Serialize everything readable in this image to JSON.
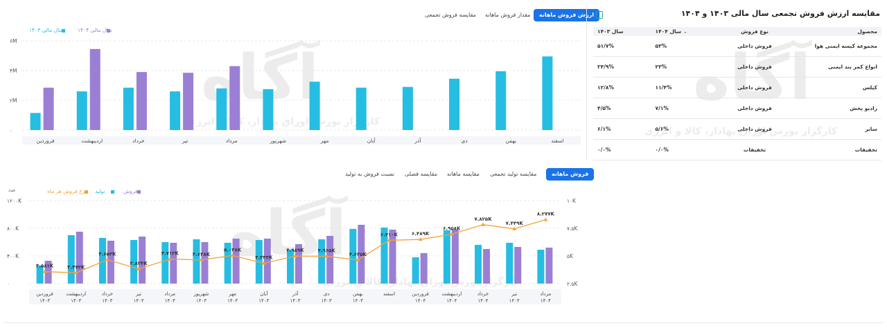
{
  "top_chart": {
    "tabs": [
      "ارزش فروش ماهانه",
      "مقدار فروش ماهانه",
      "مقایسه فروش تجمعی"
    ],
    "active_tab": 0,
    "legend": [
      {
        "name": "سال مالی ۱۴۰۴",
        "color": "#9b7fd4"
      },
      {
        "name": "سال مالی ۱۴۰۳",
        "color": "#26bde2"
      }
    ],
    "colors": {
      "y1404": "#9b7fd4",
      "y1403": "#26bde2"
    }
  },
  "bottom_chart": {
    "tabs": [
      "فروش ماهانه",
      "مقایسه تولید تجمعی",
      "مقایسه ماهانه",
      "مقایسه فصلی",
      "نسبت فروش به تولید"
    ],
    "active_tab": 0,
    "left_axis_title": "عدد",
    "legend": [
      {
        "name": "فروش",
        "color": "#9b7fd4"
      },
      {
        "name": "تولید",
        "color": "#26bde2"
      },
      {
        "name": "نرخ فروش هر ماه",
        "color": "#f4a23a"
      }
    ],
    "colors": {
      "sales": "#9b7fd4",
      "production": "#26bde2",
      "rate": "#f4a23a"
    }
  },
  "table_panel": {
    "title": "مقایسه ارزش فروش تجمعی سال مالی ۱۴۰۳ و ۱۴۰۴",
    "columns": [
      "محصول",
      "نوع فروش",
      "سال ۱۴۰۴",
      "سال ۱۴۰۳"
    ],
    "rows": [
      {
        "product": "مجموعه کیسه ایمنی هوا",
        "type": "فروش داخلی",
        "y1404": "۵۳%",
        "y1403": "۵۱/۷%"
      },
      {
        "product": "انواع کمر بند ایمنی",
        "type": "فروش داخلی",
        "y1404": "۲۳%",
        "y1403": "۲۴/۹%"
      },
      {
        "product": "کیلس",
        "type": "فروش داخلی",
        "y1404": "۱۱/۴%",
        "y1403": "۱۲/۸%"
      },
      {
        "product": "رادیو پخش",
        "type": "فروش داخلی",
        "y1404": "۷/۱%",
        "y1403": "۴/۵%"
      },
      {
        "product": "سایر",
        "type": "فروش داخلی",
        "y1404": "۵/۶%",
        "y1403": "۶/۱%"
      },
      {
        "product": "تخفیفات",
        "type": "تخفیفات",
        "y1404": "۰/۰%",
        "y1403": "۰/۰%"
      }
    ]
  },
  "watermark": {
    "logo": "آگاه",
    "tagline": "کارگزار بورس اوراق بهادار، کالا و انرژی"
  },
  "chart_data": [
    {
      "type": "bar",
      "categories": [
        "فروردین",
        "اردیبهشت",
        "خرداد",
        "تیر",
        "مرداد",
        "شهریور",
        "مهر",
        "آبان",
        "آذر",
        "دی",
        "بهمن",
        "اسفند"
      ],
      "series": [
        {
          "name": "سال مالی ۱۴۰۳",
          "values": [
            1.15,
            2.6,
            2.85,
            2.6,
            2.8,
            2.75,
            3.25,
            2.85,
            2.9,
            3.45,
            3.95,
            4.95
          ]
        },
        {
          "name": "سال مالی ۱۴۰۴",
          "values": [
            2.85,
            5.45,
            3.9,
            3.85,
            4.3,
            null,
            null,
            null,
            null,
            null,
            null,
            null
          ]
        }
      ],
      "y_ticks": [
        "۰",
        "۲M",
        "۴M",
        "۶M"
      ],
      "ylim": [
        0,
        6
      ],
      "x_reversed": false
    },
    {
      "type": "bar",
      "categories": [
        "فروردین ۱۴۰۳",
        "اردیبهشت ۱۴۰۳",
        "خرداد ۱۴۰۳",
        "تیر ۱۴۰۳",
        "مرداد ۱۴۰۳",
        "شهریور ۱۴۰۳",
        "مهر ۱۴۰۳",
        "آبان ۱۴۰۳",
        "آذر ۱۴۰۳",
        "دی ۱۴۰۳",
        "بهمن ۱۴۰۳",
        "اسفند",
        "فروردین ۱۴۰۴",
        "اردیبهشت ۱۴۰۴",
        "خرداد ۱۴۰۴",
        "تیر ۱۴۰۴",
        "مرداد ۱۴۰۴"
      ],
      "series": [
        {
          "name": "تولید",
          "axis": "left",
          "values": [
            260,
            700,
            660,
            630,
            600,
            640,
            590,
            630,
            490,
            640,
            790,
            810,
            380,
            770,
            560,
            590,
            490
          ]
        },
        {
          "name": "فروش",
          "axis": "left",
          "values": [
            330,
            750,
            620,
            680,
            590,
            600,
            650,
            650,
            570,
            690,
            850,
            780,
            440,
            780,
            500,
            530,
            520
          ]
        },
        {
          "name": "نرخ فروش هر ماه",
          "type": "line",
          "axis": "right",
          "values": [
            3.581,
            3.472,
            4.652,
            3.824,
            4.712,
            4.638,
            5.038,
            4.333,
            4.989,
            4.965,
            4.635,
            6.41,
            6.489,
            6.958,
            7.825,
            7.449,
            8.277
          ]
        }
      ],
      "line_labels": [
        "۳.۵۸۱K",
        "۳.۴۷۲K",
        "۴.۶۵۲K",
        "۳.۸۲۴K",
        "۴.۷۱۲K",
        "۴.۶۳۸K",
        "۵.۰۳۸K",
        "۴.۳۳۳K",
        "۴.۹۸۹K",
        "۴.۹۶۵K",
        "۴.۶۳۵K",
        "۶.۴۱۰K",
        "۶.۴۸۹K",
        "۶.۹۵۸K",
        "۷.۸۲۵K",
        "۷.۴۴۹K",
        "۸.۲۷۷K"
      ],
      "y_ticks_left": [
        "۰",
        "۴۰۰K",
        "۸۰۰K",
        "۱۲۰۰K"
      ],
      "ylim_left": [
        0,
        1200
      ],
      "y_ticks_right": [
        "۲.۵K",
        "۵K",
        "۷.۵K",
        "۱۰K"
      ],
      "ylim_right": [
        2.5,
        10
      ]
    }
  ]
}
